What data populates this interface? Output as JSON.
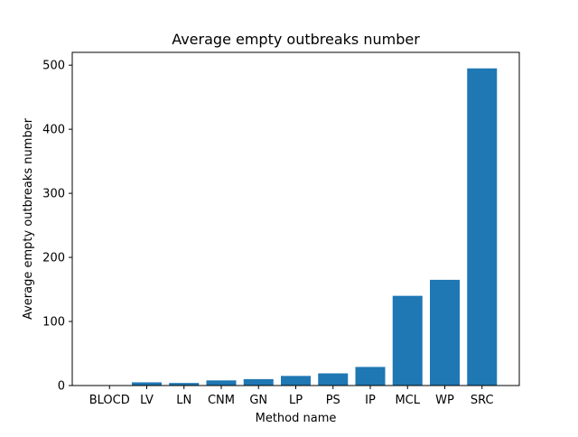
{
  "chart_data": {
    "type": "bar",
    "title": "Average empty outbreaks number",
    "xlabel": "Method name",
    "ylabel": "Average empty outbreaks number",
    "categories": [
      "BLOCD",
      "LV",
      "LN",
      "CNM",
      "GN",
      "LP",
      "PS",
      "IP",
      "MCL",
      "WP",
      "SRC"
    ],
    "values": [
      0,
      5,
      4,
      8,
      10,
      15,
      19,
      29,
      140,
      165,
      495
    ],
    "ylim": [
      0,
      520
    ],
    "yticks": [
      0,
      100,
      200,
      300,
      400,
      500
    ],
    "grid": false,
    "bar_color": "#1f77b4"
  }
}
